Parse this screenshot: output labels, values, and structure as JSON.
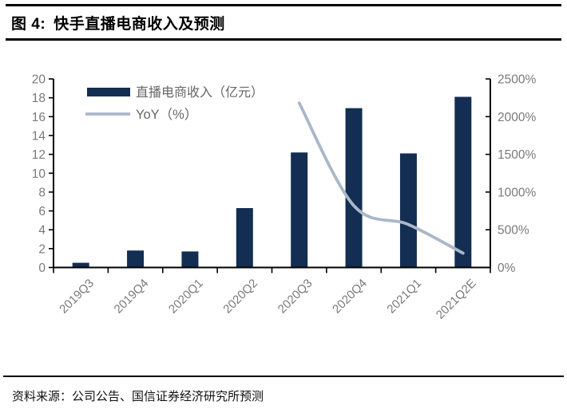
{
  "header": {
    "figure_label": "图 4:",
    "title": "快手直播电商收入及预测"
  },
  "footer": {
    "source": "资料来源：公司公告、国信证券经济研究所预测"
  },
  "colors": {
    "bar": "#132E52",
    "line": "#A9B8C9",
    "axis": "#000000",
    "tick_label": "#7a7a7a",
    "legend_text": "#666666"
  },
  "chart_data": {
    "type": "bar",
    "categories": [
      "2019Q3",
      "2019Q4",
      "2020Q1",
      "2020Q2",
      "2020Q3",
      "2020Q4",
      "2021Q1",
      "2021Q2E"
    ],
    "series": [
      {
        "name": "直播电商收入（亿元）",
        "type": "bar",
        "axis": "left",
        "values": [
          0.5,
          1.8,
          1.7,
          6.3,
          12.2,
          16.9,
          12.1,
          18.1
        ]
      },
      {
        "name": "YoY（%）",
        "type": "line",
        "axis": "right",
        "values": [
          null,
          null,
          null,
          null,
          2180,
          820,
          570,
          190
        ]
      }
    ],
    "left_axis": {
      "min": 0,
      "max": 20,
      "step": 2,
      "suffix": ""
    },
    "right_axis": {
      "min": 0,
      "max": 2500,
      "step": 500,
      "suffix": "%"
    },
    "legend_position": "top-left",
    "grid": false
  }
}
